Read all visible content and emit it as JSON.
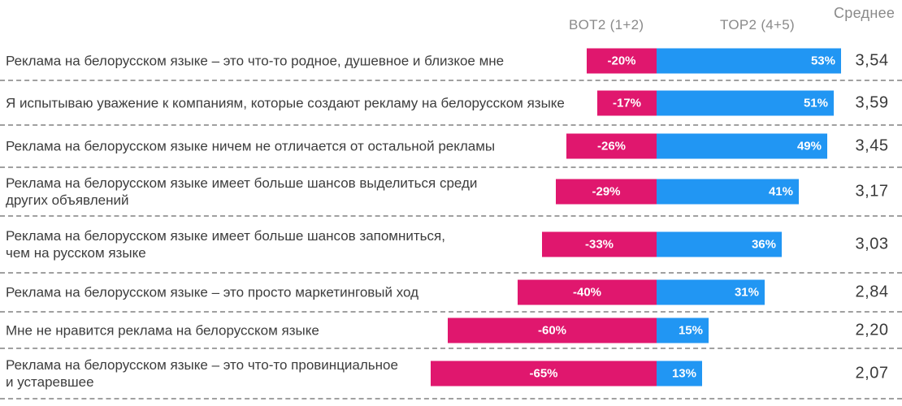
{
  "header": {
    "bot2_label": "BOT2 (1+2)",
    "top2_label": "TOP2 (4+5)",
    "avg_label": "Среднее"
  },
  "colors": {
    "negative": "#E0176E",
    "positive": "#2196F3",
    "header_text": "#8A8A8A",
    "separator": "#A0A0A0"
  },
  "rows": [
    {
      "label": "Реклама на белорусском языке – это что-то родное, душевное и близкое мне",
      "bot2_label": "-20%",
      "bot2_value": -20,
      "top2_label": "53%",
      "top2_value": 53,
      "average": "3,54"
    },
    {
      "label": "Я испытываю уважение к компаниям, которые создают рекламу на белорусском языке",
      "bot2_label": "-17%",
      "bot2_value": -17,
      "top2_label": "51%",
      "top2_value": 51,
      "average": "3,59"
    },
    {
      "label": "Реклама на белорусском языке ничем не отличается от остальной рекламы",
      "bot2_label": "-26%",
      "bot2_value": -26,
      "top2_label": "49%",
      "top2_value": 49,
      "average": "3,45"
    },
    {
      "label": "Реклама на белорусском языке имеет больше шансов выделиться среди\nдругих объявлений",
      "bot2_label": "-29%",
      "bot2_value": -29,
      "top2_label": "41%",
      "top2_value": 41,
      "average": "3,17"
    },
    {
      "label": "Реклама на белорусском языке имеет больше шансов запомниться,\nчем на русском языке",
      "bot2_label": "-33%",
      "bot2_value": -33,
      "top2_label": "36%",
      "top2_value": 36,
      "average": "3,03"
    },
    {
      "label": "Реклама на белорусском языке – это просто маркетинговый ход",
      "bot2_label": "-40%",
      "bot2_value": -40,
      "top2_label": "31%",
      "top2_value": 31,
      "average": "2,84"
    },
    {
      "label": "Мне не нравится реклама на белорусском языке",
      "bot2_label": "-60%",
      "bot2_value": -60,
      "top2_label": "15%",
      "top2_value": 15,
      "average": "2,20"
    },
    {
      "label": "Реклама на белорусском языке – это что-то провинциальное\nи устаревшее",
      "bot2_label": "-65%",
      "bot2_value": -65,
      "top2_label": "13%",
      "top2_value": 13,
      "average": "2,07"
    }
  ],
  "chart_data": {
    "type": "bar",
    "subtype": "diverging-stacked-horizontal",
    "title": "",
    "categories": [
      "Реклама на белорусском языке – это что-то родное, душевное и близкое мне",
      "Я испытываю уважение к компаниям, которые создают рекламу на белорусском языке",
      "Реклама на белорусском языке ничем не отличается от остальной рекламы",
      "Реклама на белорусском языке имеет больше шансов выделиться среди других объявлений",
      "Реклама на белорусском языке имеет больше шансов запомниться, чем на русском языке",
      "Реклама на белорусском языке – это просто маркетинговый ход",
      "Мне не нравится реклама на белорусском языке",
      "Реклама на белорусском языке – это что-то провинциальное и устаревшее"
    ],
    "series": [
      {
        "name": "BOT2 (1+2)",
        "unit": "%",
        "color": "#E0176E",
        "values": [
          -20,
          -17,
          -26,
          -29,
          -33,
          -40,
          -60,
          -65
        ]
      },
      {
        "name": "TOP2 (4+5)",
        "unit": "%",
        "color": "#2196F3",
        "values": [
          53,
          51,
          49,
          41,
          36,
          31,
          15,
          13
        ]
      },
      {
        "name": "Среднее",
        "values": [
          3.54,
          3.59,
          3.45,
          3.17,
          3.03,
          2.84,
          2.2,
          2.07
        ]
      }
    ],
    "xlabel": "",
    "ylabel": "",
    "xlim": [
      -70,
      60
    ],
    "grid": false,
    "legend_position": "top",
    "value_labels": "inside-bars"
  }
}
